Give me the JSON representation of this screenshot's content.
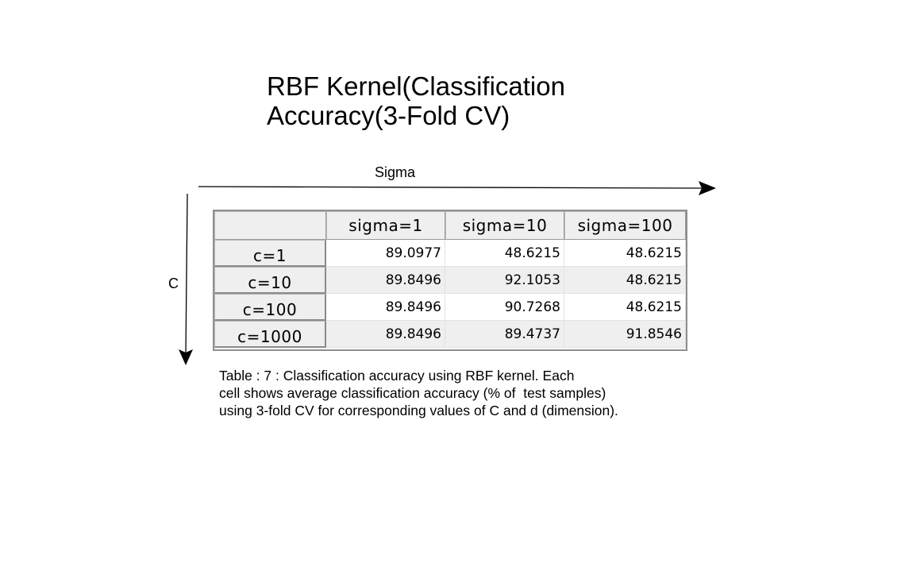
{
  "title": {
    "line1": "RBF Kernel(Classification",
    "line2": "Accuracy(3-Fold CV)"
  },
  "axes": {
    "horizontal_label": "Sigma",
    "vertical_label": "C"
  },
  "table": {
    "columns": [
      "",
      "sigma=1",
      "sigma=10",
      "sigma=100"
    ],
    "rows": [
      {
        "label": "c=1",
        "values": [
          "89.0977",
          "48.6215",
          "48.6215"
        ]
      },
      {
        "label": "c=10",
        "values": [
          "89.8496",
          "92.1053",
          "48.6215"
        ]
      },
      {
        "label": "c=100",
        "values": [
          "89.8496",
          "90.7268",
          "48.6215"
        ]
      },
      {
        "label": "c=1000",
        "values": [
          "89.8496",
          "89.4737",
          "91.8546"
        ]
      }
    ]
  },
  "caption": {
    "line1": "Table : 7 : Classification accuracy using RBF kernel. Each",
    "line2": "cell shows average classification accuracy (% of  test samples)",
    "line3": "using 3-fold CV for corresponding values of C and d (dimension)."
  }
}
